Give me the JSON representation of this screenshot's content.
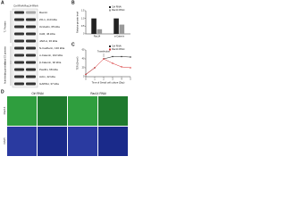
{
  "panel_labels": [
    "A",
    "B",
    "C",
    "D"
  ],
  "panel_a": {
    "columns": [
      "Ctrl RNAi",
      "Rac14 RNAi"
    ],
    "groups": [
      "TJ Proteins",
      "Basal ES proteins",
      "Actin-binding proteins"
    ],
    "rows": [
      "Rac14",
      "ZO-1, 210 kDa",
      "Occludin, 65 kDa",
      "CAR, 46 kDa",
      "JAM-A, 36 kDa",
      "N-Cadherin, 130 kDa",
      "α-Catenin, 102 kDa",
      "β-Catenin, 92 kDa",
      "Paxillin, 68 kDa",
      "Actin, 42 kDa",
      "GAPDH, 37 kDa"
    ]
  },
  "chart_data": [
    {
      "type": "bar",
      "ylabel": "Relative protein level",
      "categories": [
        "Rac14",
        "α-Catenin"
      ],
      "series": [
        {
          "name": "Ctrl RNAi",
          "color": "#222222",
          "values": [
            1,
            1
          ]
        },
        {
          "name": "Rac14 RNAi",
          "color": "#9a9a9a",
          "values": [
            0.3,
            0.6
          ]
        }
      ],
      "ylim": [
        0,
        1.5
      ],
      "yticks": [
        0,
        0.5,
        {
          "value": 1,
          "label": "1.0"
        },
        1.5
      ]
    },
    {
      "type": "line",
      "ylabel": "TER (Ω•cm²)",
      "xlabel": "Time of Sertoli cell culture (Day)",
      "annotation": "Transfection",
      "x": [
        0,
        1,
        2,
        3,
        4,
        5
      ],
      "series": [
        {
          "name": "Ctrl RNAi",
          "color": "#222222",
          "values": [
            5,
            20,
            40,
            45,
            45,
            44
          ]
        },
        {
          "name": "Rac14 RNAi",
          "color": "#d62728",
          "values": [
            5,
            20,
            40,
            30,
            22,
            20
          ]
        }
      ],
      "xlim": [
        0,
        5
      ],
      "xticks": [
        0,
        1,
        2,
        3,
        4,
        5
      ],
      "ylim": [
        0,
        60
      ],
      "yticks": [
        0,
        20,
        40,
        60
      ]
    }
  ],
  "panel_d": {
    "columns": [
      "Ctrl RNAi",
      "Rac14 RNAi"
    ],
    "rows": [
      "Rac14",
      "DAPI"
    ]
  }
}
